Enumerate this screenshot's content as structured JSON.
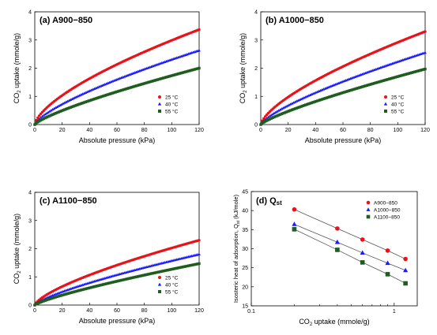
{
  "colors": {
    "red": "#e8131a",
    "blue": "#1a1aff",
    "green": "#1f5c1f"
  },
  "chart_data": [
    {
      "type": "scatter",
      "id": "a",
      "title": "(a) A900−850",
      "xlabel": "Absolute pressure (kPa)",
      "ylabel_main": "CO",
      "ylabel_sub": "2",
      "ylabel_rest": " uptake (mmole/g)",
      "xlim": [
        0,
        120
      ],
      "ylim": [
        0,
        4
      ],
      "xticks": [
        "0",
        "20",
        "40",
        "60",
        "80",
        "100",
        "120"
      ],
      "yticks": [
        "0",
        "1",
        "2",
        "3",
        "4"
      ],
      "legend_position": "bottom-right",
      "series": [
        {
          "name": "25 °C",
          "marker": "circle",
          "color": "red",
          "end_value": 3.37,
          "exponent": 0.66
        },
        {
          "name": "40 °C",
          "marker": "triangle",
          "color": "blue",
          "end_value": 2.63,
          "exponent": 0.72
        },
        {
          "name": "55 °C",
          "marker": "square",
          "color": "green",
          "end_value": 2.0,
          "exponent": 0.78
        }
      ]
    },
    {
      "type": "scatter",
      "id": "b",
      "title": "(b) A1000−850",
      "xlabel": "Absolute pressure (kPa)",
      "ylabel_main": "CO",
      "ylabel_sub": "2",
      "ylabel_rest": " uptake (mmole/g)",
      "xlim": [
        0,
        120
      ],
      "ylim": [
        0,
        4
      ],
      "xticks": [
        "0",
        "20",
        "40",
        "60",
        "80",
        "100",
        "120"
      ],
      "yticks": [
        "0",
        "1",
        "2",
        "3",
        "4"
      ],
      "legend_position": "bottom-right",
      "series": [
        {
          "name": "25 °C",
          "marker": "circle",
          "color": "red",
          "end_value": 3.3,
          "exponent": 0.68
        },
        {
          "name": "40 °C",
          "marker": "triangle",
          "color": "blue",
          "end_value": 2.55,
          "exponent": 0.74
        },
        {
          "name": "55 °C",
          "marker": "square",
          "color": "green",
          "end_value": 1.97,
          "exponent": 0.8
        }
      ]
    },
    {
      "type": "scatter",
      "id": "c",
      "title": "(c) A1100−850",
      "xlabel": "Absolute pressure (kPa)",
      "ylabel_main": "CO",
      "ylabel_sub": "2",
      "ylabel_rest": " uptake (mmole/g)",
      "xlim": [
        0,
        120
      ],
      "ylim": [
        0,
        4
      ],
      "xticks": [
        "0",
        "20",
        "40",
        "60",
        "80",
        "100",
        "120"
      ],
      "yticks": [
        "0",
        "1",
        "2",
        "3",
        "4"
      ],
      "legend_position": "bottom-right",
      "series": [
        {
          "name": "25 °C",
          "marker": "circle",
          "color": "red",
          "end_value": 2.3,
          "exponent": 0.7
        },
        {
          "name": "40 °C",
          "marker": "triangle",
          "color": "blue",
          "end_value": 1.8,
          "exponent": 0.75
        },
        {
          "name": "55 °C",
          "marker": "square",
          "color": "green",
          "end_value": 1.47,
          "exponent": 0.8
        }
      ]
    },
    {
      "type": "scatter",
      "id": "d",
      "title_main": "(d) Q",
      "title_sub": "st",
      "xlabel_main": "CO",
      "xlabel_sub": "2",
      "xlabel_rest": " uptake (mmole/g)",
      "ylabel_main": "Isosteric heat of adsorption, Q",
      "ylabel_sub": "st",
      "ylabel_rest": " (kJ/mole)",
      "xscale": "log",
      "xlim": [
        0.1,
        1.45
      ],
      "ylim": [
        15,
        45
      ],
      "xticks": [
        "0.1",
        "1"
      ],
      "yticks": [
        "15",
        "20",
        "25",
        "30",
        "35",
        "40",
        "45"
      ],
      "legend_position": "top-right",
      "series": [
        {
          "name": "A900−850",
          "marker": "circle",
          "color": "red",
          "x": [
            0.2,
            0.4,
            0.6,
            0.9,
            1.2
          ],
          "y": [
            40.3,
            35.3,
            32.4,
            29.5,
            27.3
          ]
        },
        {
          "name": "A1000−850",
          "marker": "triangle",
          "color": "blue",
          "x": [
            0.2,
            0.4,
            0.6,
            0.9,
            1.2
          ],
          "y": [
            36.4,
            31.7,
            28.9,
            26.2,
            24.3
          ]
        },
        {
          "name": "A1100−850",
          "marker": "square",
          "color": "green",
          "x": [
            0.2,
            0.4,
            0.6,
            0.9,
            1.2
          ],
          "y": [
            35.1,
            29.7,
            26.4,
            23.3,
            20.9
          ]
        }
      ]
    }
  ]
}
